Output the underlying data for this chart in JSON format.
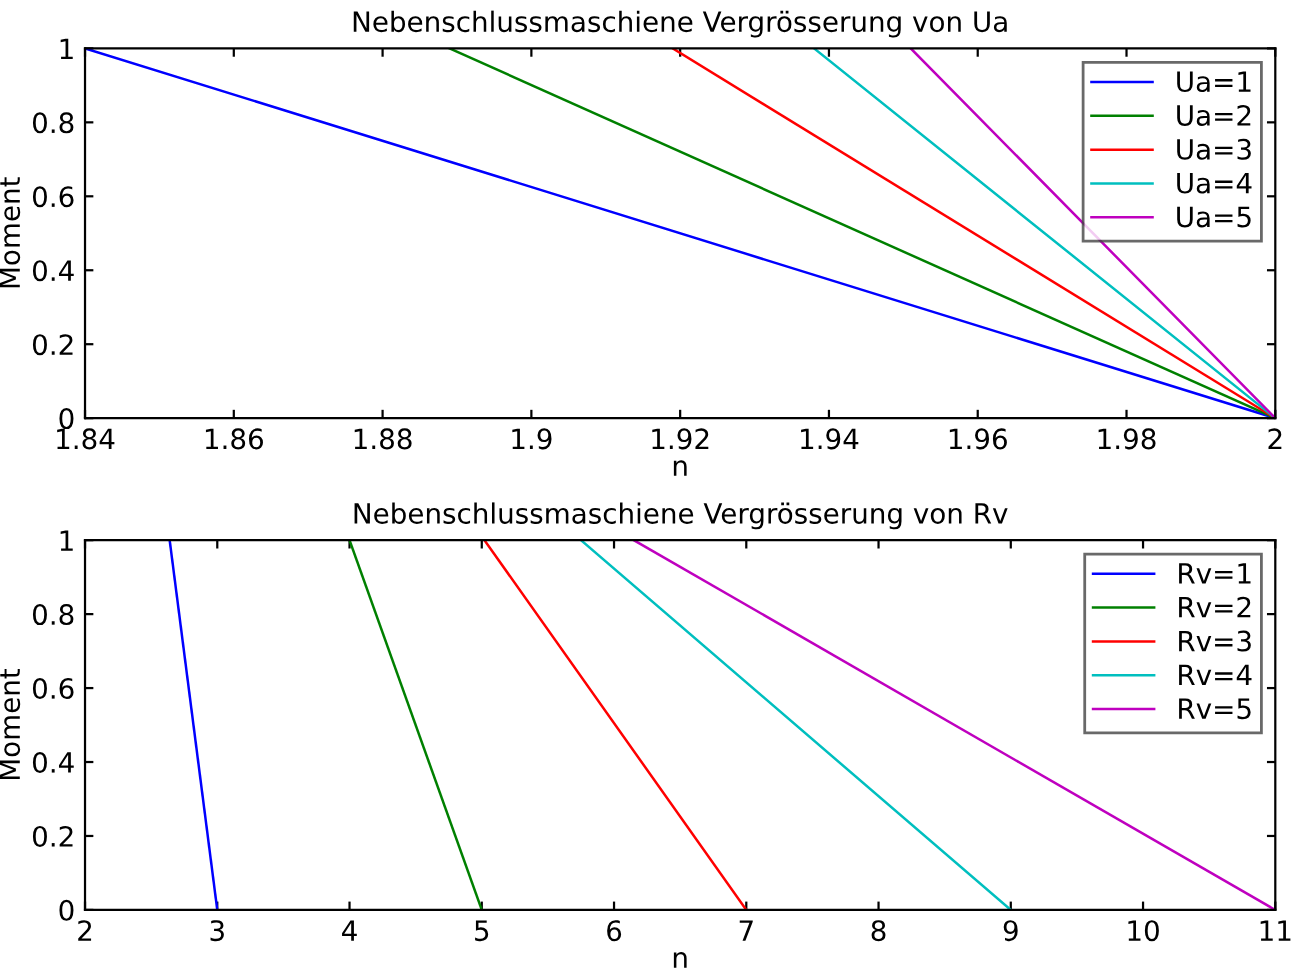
{
  "chart_data": [
    {
      "type": "line",
      "title": "Nebenschlussmaschiene Vergrösserung von Ua",
      "xlabel": "n",
      "ylabel": "Moment",
      "xlim": [
        1.84,
        2
      ],
      "ylim": [
        0,
        1
      ],
      "xticks": [
        1.84,
        1.86,
        1.88,
        1.9,
        1.92,
        1.94,
        1.96,
        1.98,
        2
      ],
      "yticks": [
        0,
        0.2,
        0.4,
        0.6,
        0.8,
        1
      ],
      "grid": false,
      "legend": "top right",
      "series": [
        {
          "name": "Ua=1",
          "color": "#0000ff",
          "x": [
            1.84,
            2
          ],
          "values": [
            1,
            0
          ]
        },
        {
          "name": "Ua=2",
          "color": "#008000",
          "x": [
            1.889,
            2
          ],
          "values": [
            1,
            0
          ]
        },
        {
          "name": "Ua=3",
          "color": "#ff0000",
          "x": [
            1.919,
            2
          ],
          "values": [
            1,
            0
          ]
        },
        {
          "name": "Ua=4",
          "color": "#00bfbf",
          "x": [
            1.938,
            2
          ],
          "values": [
            1,
            0
          ]
        },
        {
          "name": "Ua=5",
          "color": "#bf00bf",
          "x": [
            1.951,
            2
          ],
          "values": [
            1,
            0
          ]
        }
      ]
    },
    {
      "type": "line",
      "title": "Nebenschlussmaschiene Vergrösserung von Rv",
      "xlabel": "n",
      "ylabel": "Moment",
      "xlim": [
        2,
        11
      ],
      "ylim": [
        0,
        1
      ],
      "xticks": [
        2,
        3,
        4,
        5,
        6,
        7,
        8,
        9,
        10,
        11
      ],
      "yticks": [
        0,
        0.2,
        0.4,
        0.6,
        0.8,
        1
      ],
      "grid": false,
      "legend": "top right",
      "series": [
        {
          "name": "Rv=1",
          "color": "#0000ff",
          "x": [
            2.64,
            3
          ],
          "values": [
            1,
            0
          ]
        },
        {
          "name": "Rv=2",
          "color": "#008000",
          "x": [
            4.0,
            5
          ],
          "values": [
            1,
            0
          ]
        },
        {
          "name": "Rv=3",
          "color": "#ff0000",
          "x": [
            5.02,
            7
          ],
          "values": [
            1,
            0
          ]
        },
        {
          "name": "Rv=4",
          "color": "#00bfbf",
          "x": [
            5.75,
            9
          ],
          "values": [
            1,
            0
          ]
        },
        {
          "name": "Rv=5",
          "color": "#bf00bf",
          "x": [
            6.15,
            11
          ],
          "values": [
            1,
            0
          ]
        }
      ]
    }
  ]
}
